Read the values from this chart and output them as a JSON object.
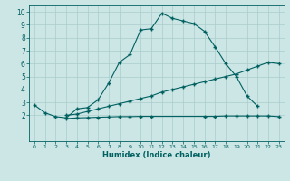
{
  "title": "",
  "xlabel": "Humidex (Indice chaleur)",
  "xlim": [
    -0.5,
    23.5
  ],
  "ylim": [
    0,
    10.5
  ],
  "xticks": [
    0,
    1,
    2,
    3,
    4,
    5,
    6,
    7,
    8,
    9,
    10,
    11,
    12,
    13,
    14,
    15,
    16,
    17,
    18,
    19,
    20,
    21,
    22,
    23
  ],
  "yticks": [
    2,
    3,
    4,
    5,
    6,
    7,
    8,
    9,
    10
  ],
  "bg_color": "#cce5e5",
  "grid_color": "#aacccc",
  "line_color": "#006060",
  "line1_x": [
    0,
    1,
    2,
    3,
    4,
    5,
    6,
    7,
    8,
    9,
    10,
    11,
    12,
    13,
    14,
    15,
    16,
    17,
    18,
    19,
    20,
    21
  ],
  "line1_y": [
    2.8,
    2.2,
    1.9,
    1.8,
    2.5,
    2.6,
    3.2,
    4.5,
    6.1,
    6.7,
    8.6,
    8.7,
    9.9,
    9.5,
    9.3,
    9.1,
    8.5,
    7.3,
    6.0,
    5.0,
    3.5,
    2.7
  ],
  "line2_x": [
    3,
    4,
    5,
    6,
    7,
    8,
    9,
    10,
    11,
    12,
    13,
    14,
    15,
    16,
    17,
    18,
    19,
    20,
    21,
    22,
    23
  ],
  "line2_y": [
    2.0,
    2.1,
    2.3,
    2.5,
    2.7,
    2.9,
    3.1,
    3.3,
    3.5,
    3.8,
    4.0,
    4.2,
    4.4,
    4.6,
    4.8,
    5.0,
    5.2,
    5.5,
    5.8,
    6.1,
    6.0
  ],
  "line3_x": [
    3,
    4,
    5,
    6,
    7,
    8,
    9,
    10,
    11,
    16,
    17,
    18,
    19,
    20,
    21,
    22,
    23
  ],
  "line3_y": [
    1.75,
    1.8,
    1.82,
    1.85,
    1.87,
    1.9,
    1.9,
    1.92,
    1.92,
    1.92,
    1.92,
    1.95,
    1.95,
    1.95,
    1.95,
    1.95,
    1.9
  ]
}
